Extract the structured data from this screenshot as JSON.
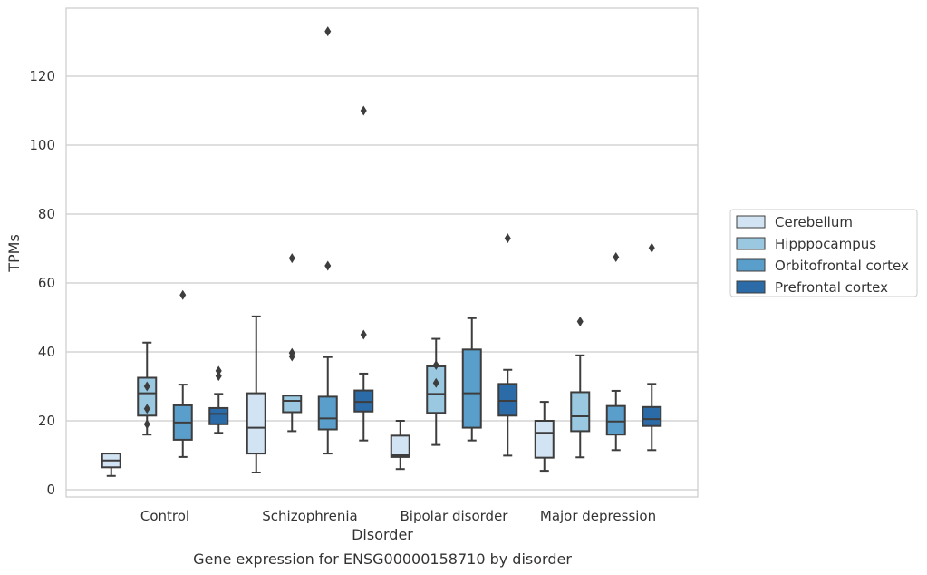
{
  "caption": "Gene expression for ENSG00000158710 by disorder",
  "chart_data": {
    "type": "boxplot",
    "xlabel": "Disorder",
    "ylabel": "TPMs",
    "ylim": [
      -2,
      139
    ],
    "yticks": [
      0,
      20,
      40,
      60,
      80,
      100,
      120
    ],
    "grid": "horizontal",
    "legend_position": "right-center",
    "categories": [
      "Control",
      "Schizophrenia",
      "Bipolar disorder",
      "Major depression"
    ],
    "series": [
      {
        "name": "Cerebellum",
        "color": "#d2e3f3",
        "boxes": [
          {
            "whisker_low": 4.0,
            "q1": 6.5,
            "median": 8.5,
            "q3": 10.5,
            "whisker_high": 10.5,
            "outliers": []
          },
          {
            "whisker_low": 5.0,
            "q1": 10.5,
            "median": 18.0,
            "q3": 28.0,
            "whisker_high": 50.3,
            "outliers": []
          },
          {
            "whisker_low": 6.0,
            "q1": 9.5,
            "median": 10.0,
            "q3": 15.7,
            "whisker_high": 20.0,
            "outliers": []
          },
          {
            "whisker_low": 5.5,
            "q1": 9.3,
            "median": 16.5,
            "q3": 20.0,
            "whisker_high": 25.5,
            "outliers": []
          }
        ]
      },
      {
        "name": "Hipppocampus",
        "color": "#9ac8e0",
        "boxes": [
          {
            "whisker_low": 16.0,
            "q1": 21.5,
            "median": 28.0,
            "q3": 32.5,
            "whisker_high": 42.7,
            "outliers": [
              30.0,
              23.5,
              19.0
            ]
          },
          {
            "whisker_low": 17.0,
            "q1": 22.5,
            "median": 25.8,
            "q3": 27.3,
            "whisker_high": 27.3,
            "outliers": [
              67.2,
              39.7,
              38.7
            ]
          },
          {
            "whisker_low": 13.0,
            "q1": 22.3,
            "median": 27.8,
            "q3": 35.8,
            "whisker_high": 43.8,
            "outliers": [
              36.2,
              31.0
            ]
          },
          {
            "whisker_low": 9.4,
            "q1": 17.0,
            "median": 21.3,
            "q3": 28.3,
            "whisker_high": 39.0,
            "outliers": [
              48.8
            ]
          }
        ]
      },
      {
        "name": "Orbitofrontal cortex",
        "color": "#5a9fcb",
        "boxes": [
          {
            "whisker_low": 9.5,
            "q1": 14.5,
            "median": 19.5,
            "q3": 24.5,
            "whisker_high": 30.5,
            "outliers": [
              56.5
            ]
          },
          {
            "whisker_low": 10.5,
            "q1": 17.5,
            "median": 20.7,
            "q3": 27.0,
            "whisker_high": 38.5,
            "outliers": [
              133.0,
              65.0
            ]
          },
          {
            "whisker_low": 14.3,
            "q1": 18.0,
            "median": 28.0,
            "q3": 40.7,
            "whisker_high": 49.8,
            "outliers": []
          },
          {
            "whisker_low": 11.5,
            "q1": 16.0,
            "median": 19.8,
            "q3": 24.3,
            "whisker_high": 28.7,
            "outliers": [
              67.5
            ]
          }
        ]
      },
      {
        "name": "Prefrontal cortex",
        "color": "#2b6ba8",
        "boxes": [
          {
            "whisker_low": 16.5,
            "q1": 19.0,
            "median": 22.0,
            "q3": 23.7,
            "whisker_high": 27.8,
            "outliers": [
              34.5,
              33.0
            ]
          },
          {
            "whisker_low": 14.3,
            "q1": 22.7,
            "median": 25.5,
            "q3": 28.8,
            "whisker_high": 33.7,
            "outliers": [
              110.0,
              45.0
            ]
          },
          {
            "whisker_low": 9.9,
            "q1": 21.5,
            "median": 25.8,
            "q3": 30.7,
            "whisker_high": 34.8,
            "outliers": [
              73.0
            ]
          },
          {
            "whisker_low": 11.5,
            "q1": 18.5,
            "median": 20.5,
            "q3": 24.0,
            "whisker_high": 30.7,
            "outliers": [
              70.2
            ]
          }
        ]
      }
    ]
  }
}
